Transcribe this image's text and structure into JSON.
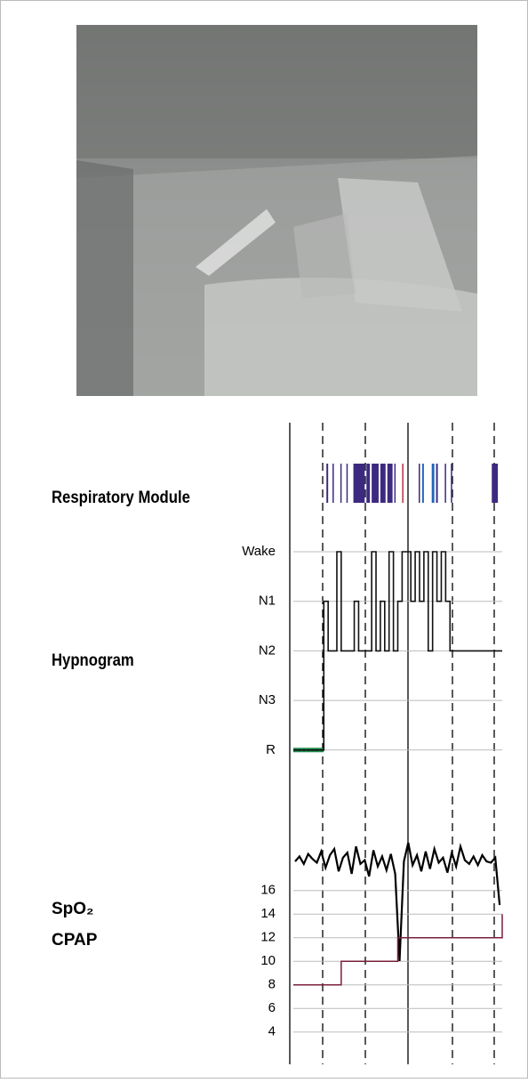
{
  "chart_data": [
    {
      "type": "event",
      "title": "Respiratory Module",
      "xlim": [
        0,
        48
      ],
      "events": [
        {
          "start": 7.6,
          "end": 8.0,
          "color": "#3d2a80"
        },
        {
          "start": 9.0,
          "end": 9.2,
          "color": "#3d2a80"
        },
        {
          "start": 10.8,
          "end": 11.0,
          "color": "#3d2a80"
        },
        {
          "start": 12.2,
          "end": 12.4,
          "color": "#3d2a80"
        },
        {
          "start": 13.8,
          "end": 16.4,
          "color": "#3d2a80"
        },
        {
          "start": 16.8,
          "end": 17.6,
          "color": "#3d2a80"
        },
        {
          "start": 18.0,
          "end": 19.6,
          "color": "#3d2a80"
        },
        {
          "start": 20.0,
          "end": 21.2,
          "color": "#3d2a80"
        },
        {
          "start": 21.6,
          "end": 22.8,
          "color": "#3d2a80"
        },
        {
          "start": 23.2,
          "end": 23.4,
          "color": "#3d2a80"
        },
        {
          "start": 25.0,
          "end": 25.2,
          "color": "#b8323c"
        },
        {
          "start": 28.8,
          "end": 29.0,
          "color": "#3d2a80"
        },
        {
          "start": 29.6,
          "end": 30.0,
          "color": "#2166b8"
        },
        {
          "start": 31.8,
          "end": 32.4,
          "color": "#2166b8"
        },
        {
          "start": 32.8,
          "end": 33.2,
          "color": "#3d2a80"
        },
        {
          "start": 34.8,
          "end": 35.0,
          "color": "#3d2a80"
        },
        {
          "start": 36.2,
          "end": 36.4,
          "color": "#3d2a80"
        },
        {
          "start": 45.6,
          "end": 47.0,
          "color": "#3d2a80"
        }
      ]
    },
    {
      "type": "hypnogram",
      "title": "Hypnogram",
      "xlim": [
        0,
        48
      ],
      "color": "#111111",
      "stage_colors": {
        "R": "#1a8a4a"
      },
      "stages": [
        "Wake",
        "N1",
        "N2",
        "N3",
        "R"
      ],
      "values": [
        "R",
        "R",
        "R",
        "R",
        "R",
        "R",
        "R",
        "N1",
        "N2",
        "N2",
        "Wake",
        "N2",
        "N2",
        "N2",
        "N1",
        "N2",
        "N2",
        "N2",
        "Wake",
        "N2",
        "N1",
        "N2",
        "Wake",
        "N2",
        "N1",
        "Wake",
        "Wake",
        "N1",
        "Wake",
        "N1",
        "Wake",
        "N2",
        "Wake",
        "N1",
        "Wake",
        "N1",
        "N2",
        "N2",
        "N2",
        "N2",
        "N2",
        "N2",
        "N2",
        "N2",
        "N2",
        "N2",
        "N2",
        "N2"
      ]
    },
    {
      "type": "line",
      "xlim": [
        0,
        48
      ],
      "ylim": [
        3,
        17
      ],
      "yticks": [
        16,
        14,
        12,
        10,
        8,
        6,
        4
      ],
      "y2lim": [
        0,
        100
      ],
      "grid": true,
      "series": [
        {
          "name": "SpO₂",
          "color": "#000000",
          "axis": "y2",
          "values": [
            80,
            84,
            78,
            86,
            82,
            79,
            88,
            75,
            85,
            90,
            72,
            83,
            87,
            70,
            92,
            78,
            81,
            68,
            89,
            76,
            84,
            73,
            86,
            70,
            0,
            80,
            95,
            77,
            85,
            72,
            88,
            74,
            90,
            79,
            83,
            71,
            87,
            76,
            92,
            81,
            78,
            84,
            77,
            85,
            80,
            79,
            83,
            45
          ]
        },
        {
          "name": "CPAP",
          "color": "#7a1f3a",
          "values": [
            8,
            8,
            8,
            8,
            8,
            8,
            8,
            8,
            8,
            8,
            8,
            10,
            10,
            10,
            10,
            10,
            10,
            10,
            10,
            10,
            10,
            10,
            10,
            10,
            12,
            12,
            12,
            12,
            12,
            12,
            12,
            12,
            12,
            12,
            12,
            12,
            12,
            12,
            12,
            12,
            12,
            12,
            12,
            12,
            12,
            12,
            12,
            12,
            14
          ]
        }
      ]
    }
  ]
}
